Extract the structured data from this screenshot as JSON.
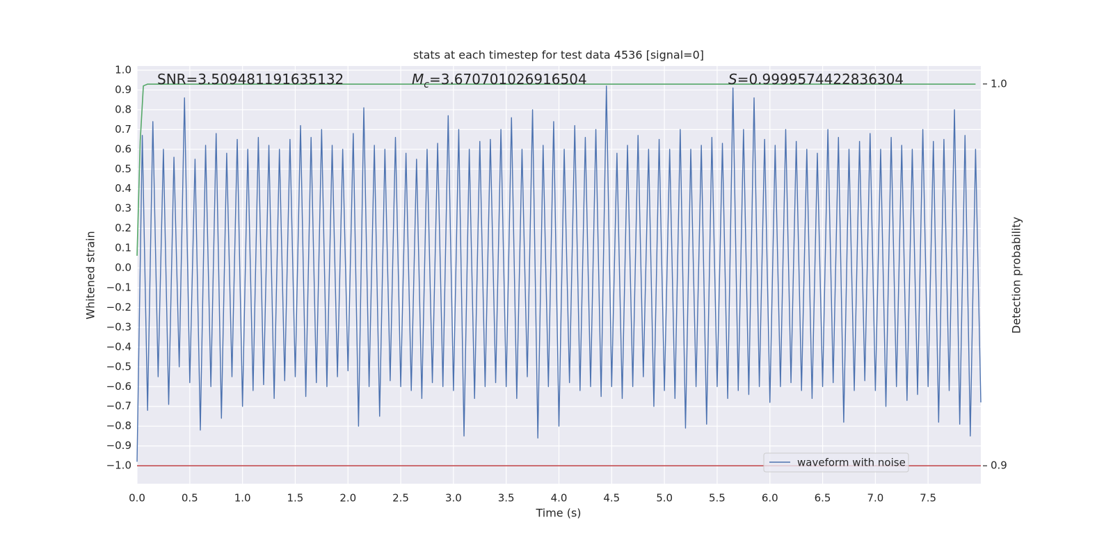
{
  "chart_data": {
    "type": "line",
    "title": "stats at each timestep for test data 4536 [signal=0]",
    "x_label": "Time (s)",
    "y_label": "Whitened strain",
    "y2_label": "Detection probability",
    "annotations": [
      {
        "text": "SNR=3.509481191635132"
      },
      {
        "symbol": "M",
        "subscript": "c",
        "text": "=3.670701026916504"
      },
      {
        "symbol": "S",
        "text": "=0.9999574422836304"
      }
    ],
    "xlim": [
      0,
      8.0
    ],
    "ylim": [
      -1.091,
      1.021
    ],
    "y2lim": [
      0.8953,
      1.0047
    ],
    "xticks": [
      {
        "value": 0,
        "label": "0.0"
      },
      0.5,
      {
        "value": 1,
        "label": "1.0"
      },
      1.5,
      {
        "value": 2,
        "label": "2.0"
      },
      2.5,
      {
        "value": 3,
        "label": "3.0"
      },
      3.5,
      {
        "value": 4,
        "label": "4.0"
      },
      4.5,
      {
        "value": 5,
        "label": "5.0"
      },
      5.5,
      {
        "value": 6,
        "label": "6.0"
      },
      6.5,
      {
        "value": 7,
        "label": "7.0"
      },
      7.5
    ],
    "yticks": [
      {
        "value": -1,
        "label": "−1.0"
      },
      {
        "value": -0.9,
        "label": "−0.9"
      },
      {
        "value": -0.8,
        "label": "−0.8"
      },
      {
        "value": -0.7,
        "label": "−0.7"
      },
      {
        "value": -0.6,
        "label": "−0.6"
      },
      {
        "value": -0.5,
        "label": "−0.5"
      },
      {
        "value": -0.4,
        "label": "−0.4"
      },
      {
        "value": -0.3,
        "label": "−0.3"
      },
      {
        "value": -0.2,
        "label": "−0.2"
      },
      {
        "value": -0.1,
        "label": "−0.1"
      },
      {
        "value": 0,
        "label": "0.0"
      },
      0.1,
      0.2,
      0.3,
      0.4,
      0.5,
      0.6,
      0.7,
      0.8,
      0.9,
      {
        "value": 1,
        "label": "1.0"
      }
    ],
    "y2ticks": [
      0.9,
      {
        "value": 1,
        "label": "1.0"
      }
    ],
    "grid": true,
    "legend_loc": "lower right",
    "background": "#eaeaf2",
    "series": [
      {
        "name": "waveform with noise",
        "color": "#4c72b0",
        "x": [
          0,
          0.05,
          0.1,
          0.15,
          0.2,
          0.25,
          0.3,
          0.35,
          0.4,
          0.45,
          0.5,
          0.55,
          0.6,
          0.65,
          0.7,
          0.75,
          0.8,
          0.85,
          0.9,
          0.95,
          1,
          1.05,
          1.1,
          1.15,
          1.2,
          1.25,
          1.3,
          1.35,
          1.4,
          1.45,
          1.5,
          1.55,
          1.6,
          1.65,
          1.7,
          1.75,
          1.8,
          1.85,
          1.9,
          1.95,
          2,
          2.05,
          2.1,
          2.15,
          2.2,
          2.25,
          2.3,
          2.35,
          2.4,
          2.45,
          2.5,
          2.55,
          2.6,
          2.65,
          2.7,
          2.75,
          2.8,
          2.85,
          2.9,
          2.95,
          3,
          3.05,
          3.1,
          3.15,
          3.2,
          3.25,
          3.3,
          3.35,
          3.4,
          3.45,
          3.5,
          3.55,
          3.6,
          3.65,
          3.7,
          3.75,
          3.8,
          3.85,
          3.9,
          3.95,
          4,
          4.05,
          4.1,
          4.15,
          4.2,
          4.25,
          4.3,
          4.35,
          4.4,
          4.45,
          4.5,
          4.55,
          4.6,
          4.65,
          4.7,
          4.75,
          4.8,
          4.85,
          4.9,
          4.95,
          5,
          5.05,
          5.1,
          5.15,
          5.2,
          5.25,
          5.3,
          5.35,
          5.4,
          5.45,
          5.5,
          5.55,
          5.6,
          5.65,
          5.7,
          5.75,
          5.8,
          5.85,
          5.9,
          5.95,
          6,
          6.05,
          6.1,
          6.15,
          6.2,
          6.25,
          6.3,
          6.35,
          6.4,
          6.45,
          6.5,
          6.55,
          6.6,
          6.65,
          6.7,
          6.75,
          6.8,
          6.85,
          6.9,
          6.95,
          7,
          7.05,
          7.1,
          7.15,
          7.2,
          7.25,
          7.3,
          7.35,
          7.4,
          7.45,
          7.5,
          7.55,
          7.6,
          7.65,
          7.7,
          7.75,
          7.8,
          7.85,
          7.9,
          7.95,
          8
        ],
        "values": [
          -0.98,
          0.67,
          -0.72,
          0.74,
          -0.55,
          0.6,
          -0.69,
          0.56,
          -0.5,
          0.86,
          -0.58,
          0.55,
          -0.82,
          0.62,
          -0.6,
          0.68,
          -0.76,
          0.58,
          -0.55,
          0.65,
          -0.7,
          0.6,
          -0.62,
          0.66,
          -0.59,
          0.62,
          -0.66,
          0.6,
          -0.57,
          0.65,
          -0.55,
          0.72,
          -0.65,
          0.66,
          -0.58,
          0.7,
          -0.6,
          0.62,
          -0.55,
          0.6,
          -0.52,
          0.68,
          -0.8,
          0.81,
          -0.6,
          0.62,
          -0.75,
          0.6,
          -0.57,
          0.66,
          -0.6,
          0.58,
          -0.62,
          0.55,
          -0.66,
          0.6,
          -0.58,
          0.63,
          -0.6,
          0.77,
          -0.62,
          0.7,
          -0.85,
          0.6,
          -0.66,
          0.64,
          -0.6,
          0.65,
          -0.58,
          0.7,
          -0.6,
          0.76,
          -0.66,
          0.6,
          -0.55,
          0.8,
          -0.86,
          0.62,
          -0.6,
          0.74,
          -0.8,
          0.6,
          -0.58,
          0.72,
          -0.62,
          0.66,
          -0.6,
          0.7,
          -0.65,
          0.92,
          -0.6,
          0.58,
          -0.66,
          0.62,
          -0.6,
          0.67,
          -0.55,
          0.6,
          -0.7,
          0.65,
          -0.62,
          0.6,
          -0.66,
          0.7,
          -0.81,
          0.6,
          -0.6,
          0.62,
          -0.79,
          0.66,
          -0.6,
          0.63,
          -0.66,
          0.91,
          -0.62,
          0.7,
          -0.64,
          0.86,
          -0.6,
          0.65,
          -0.68,
          0.62,
          -0.6,
          0.7,
          -0.58,
          0.64,
          -0.62,
          0.6,
          -0.66,
          0.58,
          -0.6,
          0.7,
          -0.58,
          0.66,
          -0.78,
          0.6,
          -0.62,
          0.64,
          -0.57,
          0.68,
          -0.62,
          0.6,
          -0.7,
          0.66,
          -0.6,
          0.62,
          -0.67,
          0.6,
          -0.64,
          0.7,
          -0.6,
          0.64,
          -0.78,
          0.65,
          -0.62,
          0.8,
          -0.79,
          0.67,
          -0.85,
          0.6,
          -0.68
        ]
      },
      {
        "color": "#55a868",
        "axis": "y2",
        "x": [
          0,
          0.03,
          0.06,
          0.1,
          7.95
        ],
        "values": [
          0.955,
          0.985,
          0.9995,
          0.99996,
          0.99996
        ]
      },
      {
        "color": "#c44e52",
        "axis": "y2",
        "x": [
          0,
          8.0
        ],
        "values": [
          0.9,
          0.9
        ]
      }
    ]
  }
}
